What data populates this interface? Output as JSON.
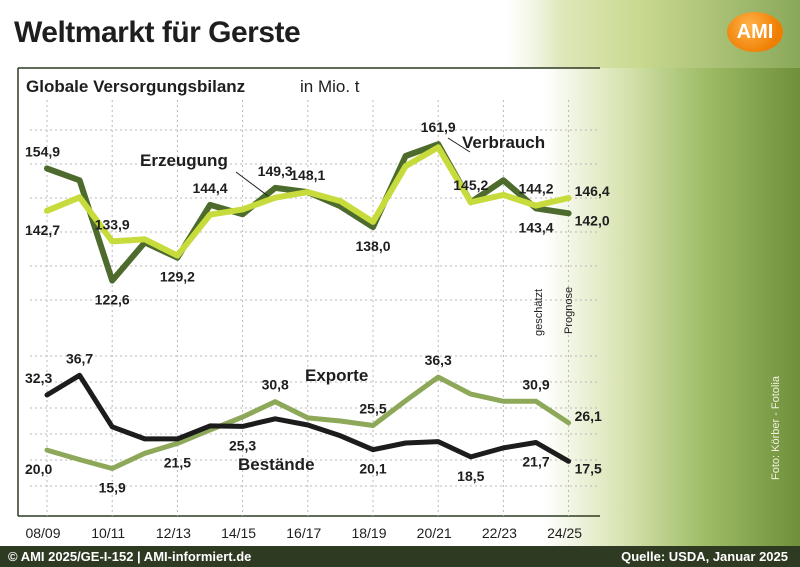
{
  "header": {
    "title": "Weltmarkt für Gerste",
    "logo_text": "AMI"
  },
  "chart": {
    "subtitle": "Globale Versorgungsbilanz",
    "unit": "in Mio. t",
    "note_estimated": "geschätzt",
    "note_forecast": "Prognose"
  },
  "footer": {
    "left": "© AMI 2025/GE-I-152 | AMI-informiert.de",
    "right": "Quelle: USDA, Januar 2025"
  },
  "photo_credit": "Foto: Körber - Fotolia",
  "colors": {
    "erzeugung": "#4d6b2c",
    "verbrauch": "#c7dc3c",
    "exporte": "#8ea85a",
    "bestaende": "#1c1c1c"
  },
  "chart_data": [
    {
      "type": "line",
      "categories": [
        "08/09",
        "09/10",
        "10/11",
        "11/12",
        "12/13",
        "13/14",
        "14/15",
        "15/16",
        "16/17",
        "17/18",
        "18/19",
        "19/20",
        "20/21",
        "21/22",
        "22/23",
        "23/24",
        "24/25"
      ],
      "tick_labels": [
        "08/09",
        "10/11",
        "12/13",
        "14/15",
        "16/17",
        "18/19",
        "20/21",
        "22/23",
        "24/25"
      ],
      "ylim": [
        117,
        166
      ],
      "series": [
        {
          "name": "Erzeugung",
          "values": [
            154.9,
            151.5,
            122.6,
            133.6,
            129.2,
            144.4,
            141.7,
            149.3,
            148.1,
            144.0,
            138.0,
            158.5,
            161.9,
            145.2,
            151.5,
            143.4,
            142.0
          ]
        },
        {
          "name": "Verbrauch",
          "values": [
            142.7,
            146.6,
            133.9,
            134.5,
            129.8,
            141.6,
            143.1,
            146.5,
            148.1,
            145.5,
            139.5,
            155.6,
            161.0,
            145.2,
            147.3,
            144.2,
            146.4
          ]
        }
      ],
      "data_labels": [
        {
          "series": "Erzeugung",
          "x": "08/09",
          "text": "154,9"
        },
        {
          "series": "Verbrauch",
          "x": "08/09",
          "text": "142,7"
        },
        {
          "series": "Erzeugung",
          "x": "10/11",
          "text": "122,6"
        },
        {
          "series": "Verbrauch",
          "x": "10/11",
          "text": "133,9"
        },
        {
          "series": "Erzeugung",
          "x": "12/13",
          "text": "129,2"
        },
        {
          "series": "Erzeugung",
          "x": "13/14",
          "text": "144,4"
        },
        {
          "series": "Erzeugung",
          "x": "15/16",
          "text": "149,3"
        },
        {
          "series": "Erzeugung",
          "x": "16/17",
          "text": "148,1"
        },
        {
          "series": "Erzeugung",
          "x": "18/19",
          "text": "138,0"
        },
        {
          "series": "Erzeugung",
          "x": "20/21",
          "text": "161,9"
        },
        {
          "series": "Erzeugung",
          "x": "21/22",
          "text": "145,2"
        },
        {
          "series": "Erzeugung",
          "x": "23/24",
          "text": "143,4"
        },
        {
          "series": "Verbrauch",
          "x": "23/24",
          "text": "144,2"
        },
        {
          "series": "Verbrauch",
          "x": "24/25",
          "text": "146,4"
        },
        {
          "series": "Erzeugung",
          "x": "24/25",
          "text": "142,0"
        }
      ]
    },
    {
      "type": "line",
      "categories": [
        "08/09",
        "09/10",
        "10/11",
        "11/12",
        "12/13",
        "13/14",
        "14/15",
        "15/16",
        "16/17",
        "17/18",
        "18/19",
        "19/20",
        "20/21",
        "21/22",
        "22/23",
        "23/24",
        "24/25"
      ],
      "ylim": [
        12,
        41
      ],
      "series": [
        {
          "name": "Exporte",
          "values": [
            20.0,
            17.9,
            15.9,
            19.3,
            21.5,
            24.5,
            27.4,
            30.8,
            27.2,
            26.5,
            25.5,
            31.0,
            36.3,
            32.5,
            30.9,
            30.9,
            26.1
          ]
        },
        {
          "name": "Bestände",
          "values": [
            32.3,
            36.7,
            25.2,
            22.5,
            22.5,
            25.4,
            25.3,
            27.0,
            25.6,
            23.2,
            20.1,
            21.6,
            21.9,
            18.5,
            20.5,
            21.7,
            17.5
          ]
        }
      ],
      "data_labels": [
        {
          "series": "Bestände",
          "x": "08/09",
          "text": "32,3"
        },
        {
          "series": "Bestände",
          "x": "09/10",
          "text": "36,7"
        },
        {
          "series": "Exporte",
          "x": "08/09",
          "text": "20,0"
        },
        {
          "series": "Exporte",
          "x": "10/11",
          "text": "15,9"
        },
        {
          "series": "Exporte",
          "x": "12/13",
          "text": "21,5"
        },
        {
          "series": "Exporte",
          "x": "15/16",
          "text": "30,8"
        },
        {
          "series": "Bestände",
          "x": "14/15",
          "text": "25,3"
        },
        {
          "series": "Exporte",
          "x": "18/19",
          "text": "25,5"
        },
        {
          "series": "Bestände",
          "x": "18/19",
          "text": "20,1"
        },
        {
          "series": "Exporte",
          "x": "20/21",
          "text": "36,3"
        },
        {
          "series": "Bestände",
          "x": "21/22",
          "text": "18,5"
        },
        {
          "series": "Exporte",
          "x": "23/24",
          "text": "30,9"
        },
        {
          "series": "Bestände",
          "x": "23/24",
          "text": "21,7"
        },
        {
          "series": "Exporte",
          "x": "24/25",
          "text": "26,1"
        },
        {
          "series": "Bestände",
          "x": "24/25",
          "text": "17,5"
        }
      ]
    }
  ]
}
